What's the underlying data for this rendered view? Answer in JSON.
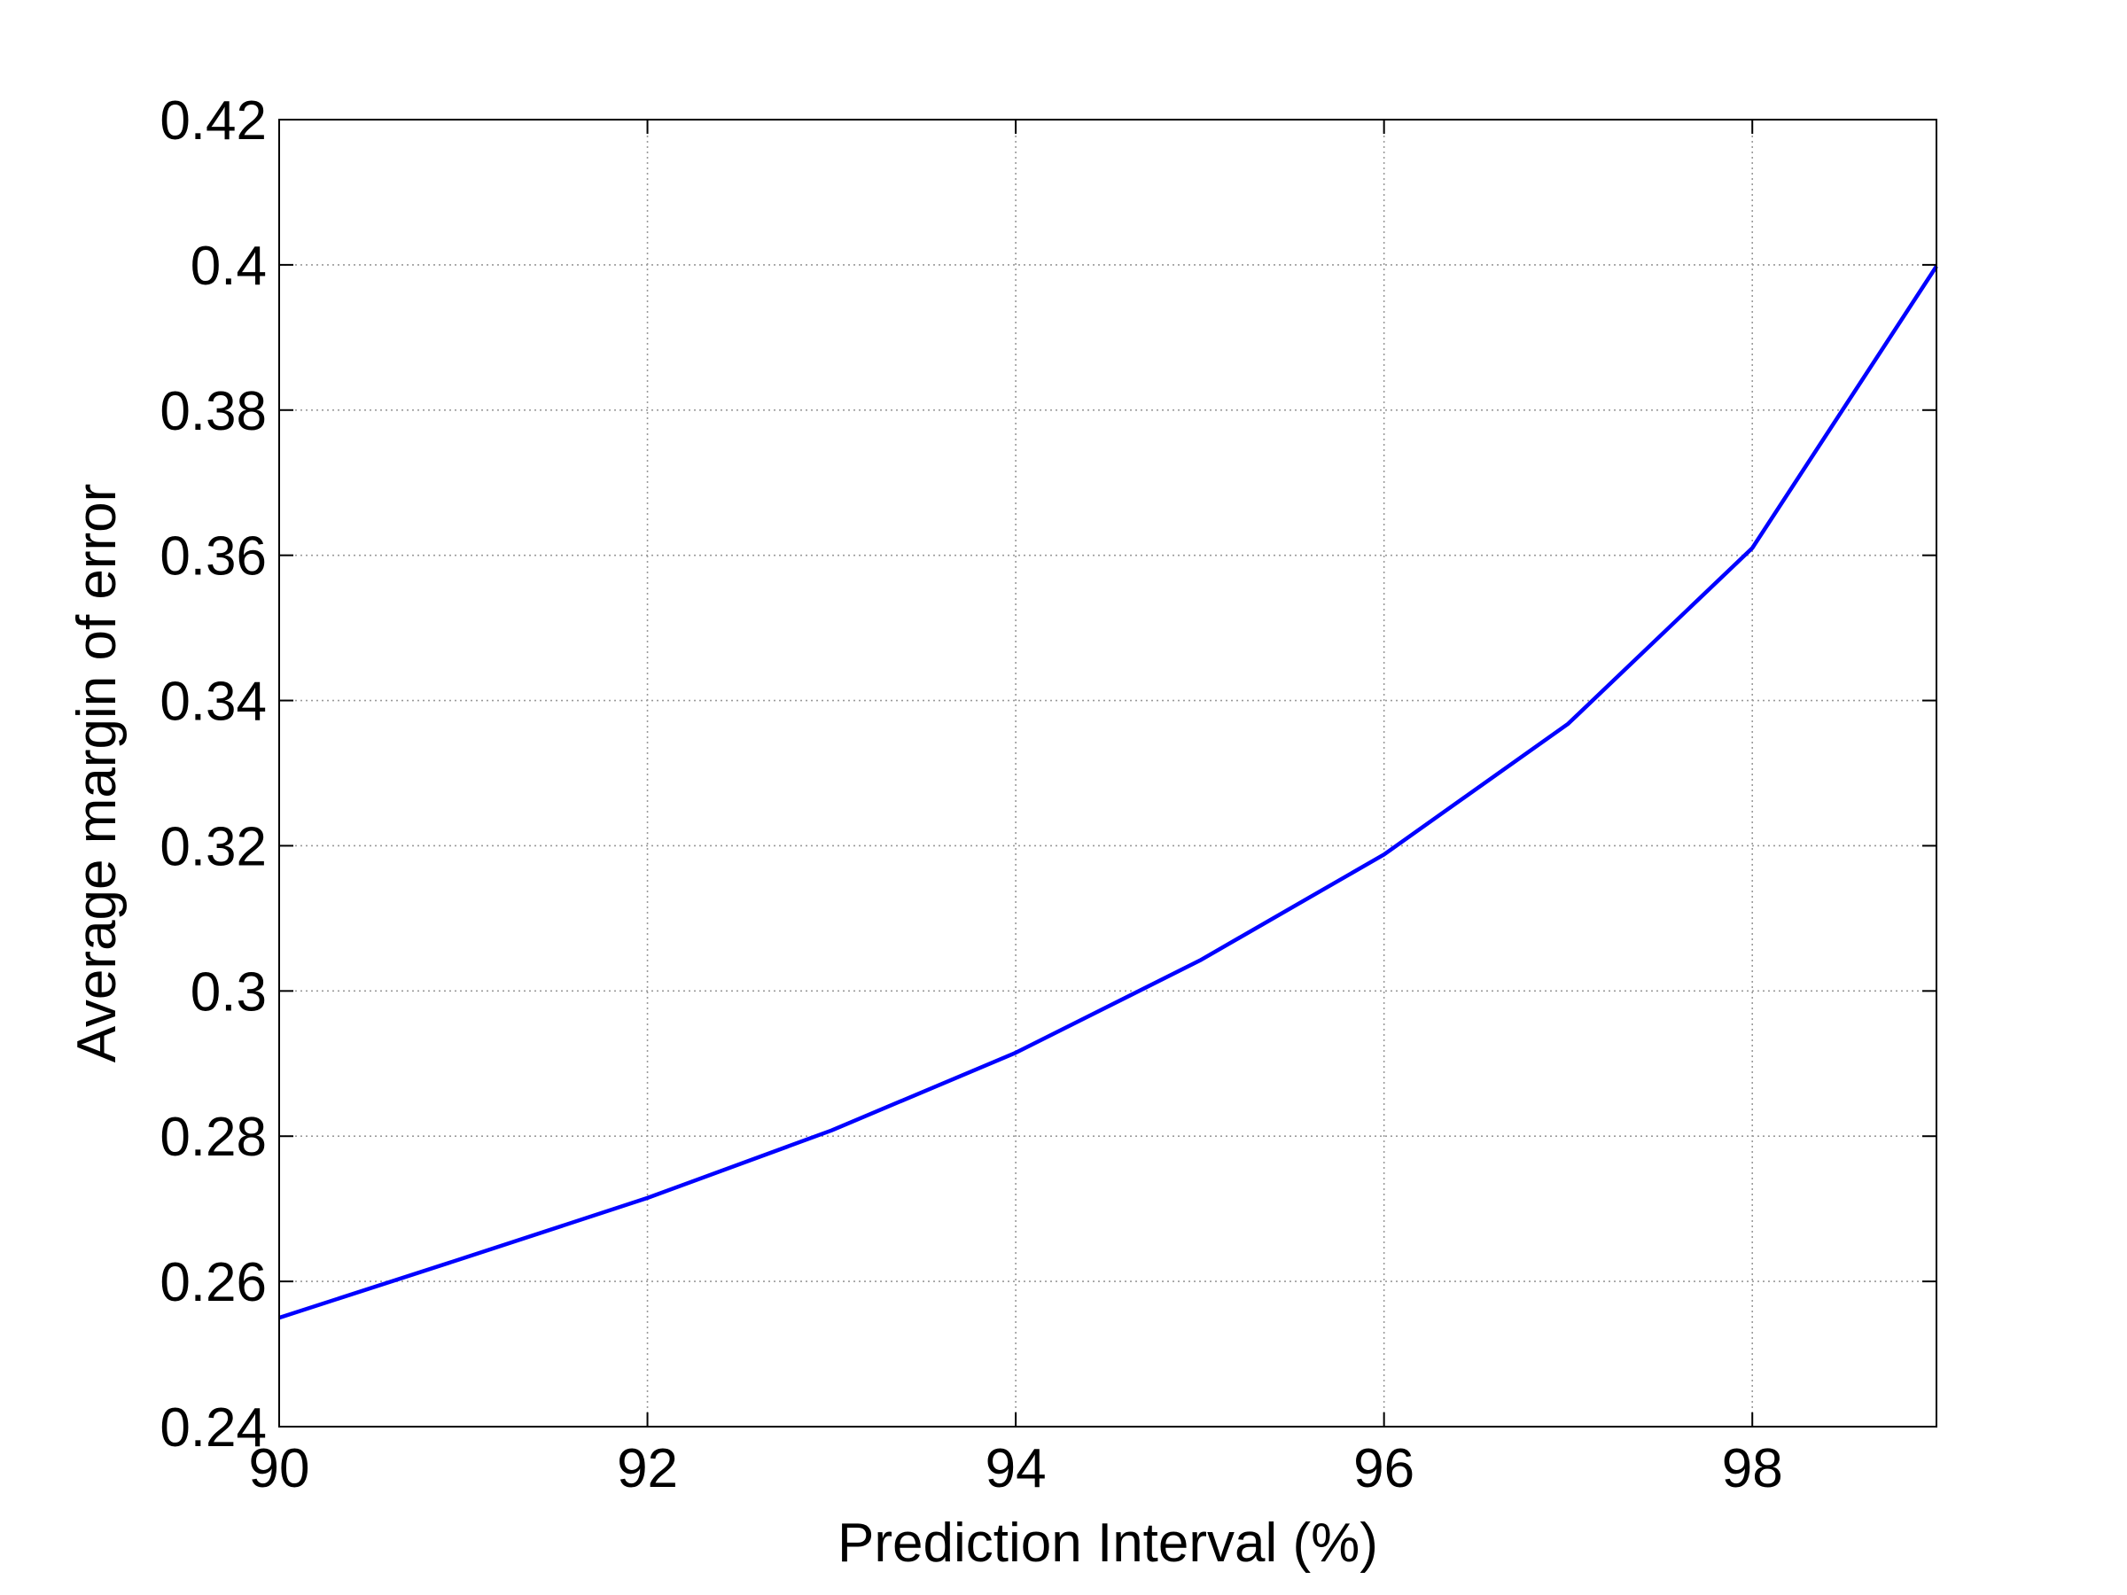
{
  "chart_data": {
    "type": "line",
    "title": "",
    "xlabel": "Prediction Interval (%)",
    "ylabel": "Average margin of error",
    "xlim": [
      90,
      99
    ],
    "ylim": [
      0.24,
      0.42
    ],
    "xticks": [
      90,
      92,
      94,
      96,
      98
    ],
    "xtick_labels": [
      "90",
      "92",
      "94",
      "96",
      "98"
    ],
    "yticks": [
      0.24,
      0.26,
      0.28,
      0.3,
      0.32,
      0.34,
      0.36,
      0.38,
      0.4,
      0.42
    ],
    "ytick_labels": [
      "0.24",
      "0.26",
      "0.28",
      "0.3",
      "0.32",
      "0.34",
      "0.36",
      "0.38",
      "0.4",
      "0.42"
    ],
    "grid": true,
    "series": [
      {
        "color": "#0000ff",
        "x": [
          90,
          91,
          92,
          93,
          94,
          95,
          96,
          97,
          98,
          99
        ],
        "y": [
          0.255,
          0.2632,
          0.2715,
          0.2808,
          0.2915,
          0.3042,
          0.3188,
          0.3368,
          0.361,
          0.3998
        ]
      }
    ]
  }
}
